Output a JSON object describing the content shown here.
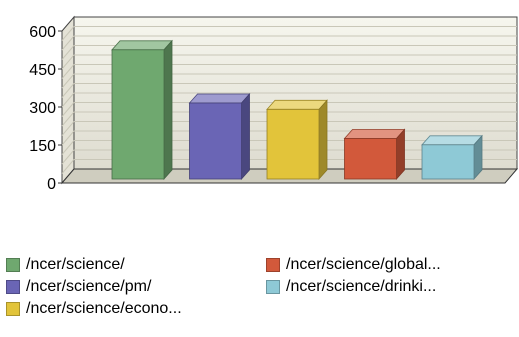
{
  "chart_data": {
    "type": "bar",
    "title": "",
    "xlabel": "",
    "ylabel": "",
    "ylim": [
      0,
      600
    ],
    "y_ticks": [
      "0",
      "150",
      "300",
      "450",
      "600"
    ],
    "grid": true,
    "three_d": true,
    "legend_position": "bottom",
    "categories": [
      "/ncer/science/",
      "/ncer/science/pm/",
      "/ncer/science/econo...",
      "/ncer/science/global...",
      "/ncer/science/drinki..."
    ],
    "values": [
      510,
      300,
      275,
      160,
      135
    ],
    "colors": [
      "#6fa86f",
      "#6a65b5",
      "#e2c43a",
      "#d2593b",
      "#8ec9d6"
    ]
  },
  "legend": {
    "items": [
      {
        "label": "/ncer/science/",
        "color": "#6fa86f"
      },
      {
        "label": "/ncer/science/pm/",
        "color": "#6a65b5"
      },
      {
        "label": "/ncer/science/econo...",
        "color": "#e2c43a"
      },
      {
        "label": "/ncer/science/global...",
        "color": "#d2593b"
      },
      {
        "label": "/ncer/science/drinki...",
        "color": "#8ec9d6"
      }
    ]
  }
}
